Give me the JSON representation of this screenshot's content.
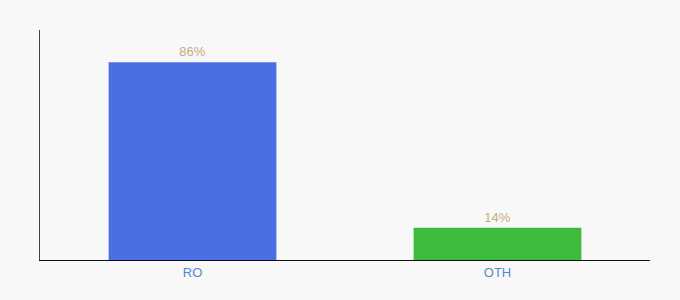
{
  "chart_data": {
    "type": "bar",
    "categories": [
      "RO",
      "OTH"
    ],
    "values": [
      86,
      14
    ],
    "colors": [
      "#4a6fe3",
      "#3dbb3d"
    ],
    "data_labels": true,
    "value_labels": [
      "86%",
      "14%"
    ],
    "ylim": [
      0,
      100
    ],
    "grid": false,
    "tick_labels": "x"
  }
}
